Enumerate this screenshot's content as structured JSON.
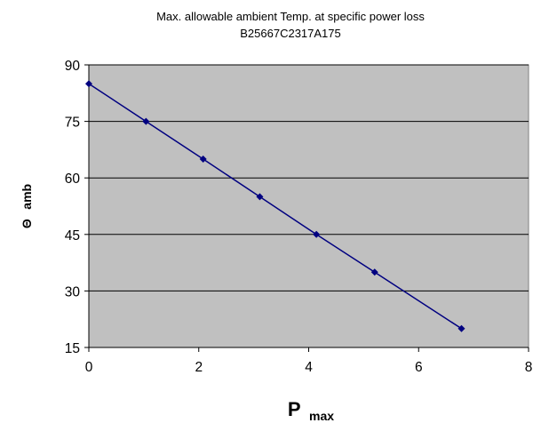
{
  "chart_data": {
    "type": "line",
    "title": "Max. allowable ambient Temp. at specific power loss",
    "subtitle": "B25667C2317A175",
    "xlabel": {
      "symbol": "P",
      "subscript": "max"
    },
    "ylabel": {
      "symbol": "Θ",
      "subscript": "amb"
    },
    "xlim": [
      0,
      8
    ],
    "ylim": [
      15,
      90
    ],
    "xticks": [
      "0",
      "2",
      "4",
      "6",
      "8"
    ],
    "yticks": [
      "15",
      "30",
      "45",
      "60",
      "75",
      "90"
    ],
    "grid": "horizontal",
    "plot_background": "#c0c0c0",
    "series": [
      {
        "color": "#000080",
        "marker": "diamond",
        "x": [
          0,
          1.04,
          2.08,
          3.11,
          4.14,
          5.2,
          6.78
        ],
        "y": [
          85,
          75,
          65,
          55,
          45,
          35,
          20
        ]
      }
    ]
  }
}
